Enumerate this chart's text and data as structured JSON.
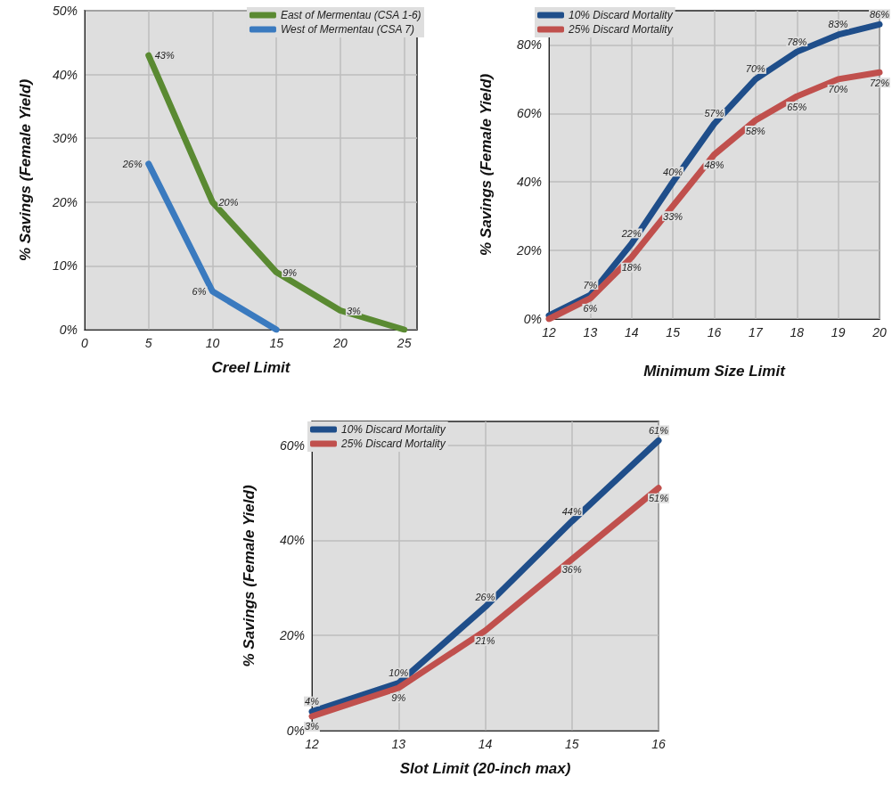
{
  "chart_data": [
    {
      "type": "line",
      "xlabel": "Creel Limit",
      "ylabel": "% Savings (Female Yield)",
      "xlim": [
        0,
        26
      ],
      "xticks": [
        0,
        5,
        10,
        15,
        20,
        25
      ],
      "ylim": [
        0,
        50
      ],
      "yticks": [
        {
          "value": 0,
          "label": "0%"
        },
        {
          "value": 10,
          "label": "10%"
        },
        {
          "value": 20,
          "label": "20%"
        },
        {
          "value": 30,
          "label": "30%"
        },
        {
          "value": 40,
          "label": "40%"
        },
        {
          "value": 50,
          "label": "50%"
        }
      ],
      "grid": true,
      "legend": "top right",
      "marker": "none",
      "line_style": "solid",
      "series": [
        {
          "name": "East of Mermentau (CSA 1-6)",
          "color": "#5a8a32",
          "x": [
            5,
            10,
            15,
            20,
            25
          ],
          "values": [
            43,
            20,
            9,
            3,
            0
          ],
          "value_labels": [
            "43%",
            "20%",
            "9%",
            "3%",
            null
          ]
        },
        {
          "name": "West of Mermentau (CSA 7)",
          "color": "#3a7abf",
          "x": [
            5,
            10,
            15
          ],
          "values": [
            26,
            6,
            0
          ],
          "value_labels": [
            "26%",
            "6%",
            null
          ]
        }
      ]
    },
    {
      "type": "line",
      "xlabel": "Minimum Size Limit",
      "ylabel": "% Savings (Female Yield)",
      "xlim": [
        12,
        20
      ],
      "xticks": [
        12,
        13,
        14,
        15,
        16,
        17,
        18,
        19,
        20
      ],
      "ylim": [
        0,
        90
      ],
      "yticks": [
        {
          "value": 0,
          "label": "0%"
        },
        {
          "value": 20,
          "label": "20%"
        },
        {
          "value": 40,
          "label": "40%"
        },
        {
          "value": 60,
          "label": "60%"
        },
        {
          "value": 80,
          "label": "80%"
        }
      ],
      "grid": true,
      "legend": "top left",
      "marker": "none",
      "line_style": "solid",
      "series": [
        {
          "name": "10% Discard Mortality",
          "color": "#1f4e8a",
          "x": [
            12,
            13,
            14,
            15,
            16,
            17,
            18,
            19,
            20
          ],
          "values": [
            1,
            7,
            22,
            40,
            57,
            70,
            78,
            83,
            86
          ],
          "value_labels": [
            null,
            "7%",
            "22%",
            "40%",
            "57%",
            "70%",
            "78%",
            "83%",
            "86%"
          ]
        },
        {
          "name": "25% Discard Mortality",
          "color": "#c0504d",
          "x": [
            12,
            13,
            14,
            15,
            16,
            17,
            18,
            19,
            20
          ],
          "values": [
            0,
            6,
            18,
            33,
            48,
            58,
            65,
            70,
            72
          ],
          "value_labels": [
            null,
            "6%",
            "18%",
            "33%",
            "48%",
            "58%",
            "65%",
            "70%",
            "72%"
          ]
        }
      ]
    },
    {
      "type": "line",
      "xlabel": "Slot Limit (20-inch max)",
      "ylabel": "% Savings (Female Yield)",
      "xlim": [
        12,
        16
      ],
      "xticks": [
        12,
        13,
        14,
        15,
        16
      ],
      "ylim": [
        0,
        65
      ],
      "yticks": [
        {
          "value": 0,
          "label": "0%"
        },
        {
          "value": 20,
          "label": "20%"
        },
        {
          "value": 40,
          "label": "40%"
        },
        {
          "value": 60,
          "label": "60%"
        }
      ],
      "grid": true,
      "legend": "top left",
      "marker": "none",
      "line_style": "solid",
      "series": [
        {
          "name": "10% Discard Mortality",
          "color": "#1f4e8a",
          "x": [
            12,
            13,
            14,
            15,
            16
          ],
          "values": [
            4,
            10,
            26,
            44,
            61
          ],
          "value_labels": [
            "4%",
            "10%",
            "26%",
            "44%",
            "61%"
          ]
        },
        {
          "name": "25% Discard Mortality",
          "color": "#c0504d",
          "x": [
            12,
            13,
            14,
            15,
            16
          ],
          "values": [
            3,
            9,
            21,
            36,
            51
          ],
          "value_labels": [
            "3%",
            "9%",
            "21%",
            "36%",
            "51%"
          ]
        }
      ]
    }
  ]
}
